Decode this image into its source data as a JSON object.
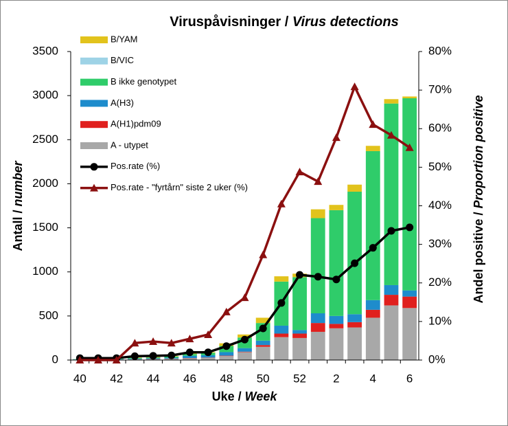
{
  "chart_data": {
    "type": "bar-line",
    "title": [
      "Viruspåvisninger /",
      "Virus detections"
    ],
    "x_label": [
      "Uke /",
      "Week"
    ],
    "y_label": [
      "Antall /",
      "number"
    ],
    "y2_label": [
      "Andel positive /",
      "Proportion positive"
    ],
    "categories": [
      40,
      null,
      42,
      null,
      44,
      null,
      46,
      null,
      48,
      null,
      50,
      null,
      52,
      null,
      2,
      null,
      4,
      null,
      6
    ],
    "ylim": [
      0,
      3500
    ],
    "yticks": [
      0,
      500,
      1000,
      1500,
      2000,
      2500,
      3000,
      3500
    ],
    "y2lim": [
      0,
      80
    ],
    "y2ticks": [
      {
        "value": 0,
        "label": "0%"
      },
      {
        "value": 10,
        "label": "10%"
      },
      {
        "value": 20,
        "label": "20%"
      },
      {
        "value": 30,
        "label": "30%"
      },
      {
        "value": 40,
        "label": "40%"
      },
      {
        "value": 50,
        "label": "50%"
      },
      {
        "value": 60,
        "label": "60%"
      },
      {
        "value": 70,
        "label": "70%"
      },
      {
        "value": 80,
        "label": "80%"
      }
    ],
    "series": [
      {
        "name": "B/YAM",
        "type": "bar",
        "color": "#e2c31c",
        "values": [
          0,
          0,
          0,
          5,
          5,
          5,
          7,
          7,
          30,
          35,
          60,
          60,
          40,
          100,
          60,
          80,
          60,
          50,
          20
        ]
      },
      {
        "name": "B/VIC",
        "type": "bar",
        "color": "#9ed3e6",
        "values": [
          0,
          0,
          0,
          0,
          0,
          0,
          0,
          0,
          0,
          0,
          0,
          0,
          0,
          0,
          0,
          0,
          0,
          0,
          0
        ]
      },
      {
        "name": "B ikke genotypet",
        "type": "bar",
        "color": "#2fcc6a",
        "values": [
          3,
          5,
          5,
          10,
          10,
          13,
          20,
          28,
          70,
          120,
          200,
          500,
          600,
          1080,
          1200,
          1390,
          1690,
          2060,
          2180
        ]
      },
      {
        "name": "A(H3)",
        "type": "bar",
        "color": "#1e8ccc",
        "values": [
          2,
          2,
          3,
          5,
          8,
          10,
          25,
          27,
          40,
          40,
          50,
          90,
          40,
          110,
          90,
          90,
          110,
          110,
          70
        ]
      },
      {
        "name": "A(H1)pdm09",
        "type": "bar",
        "color": "#e0201e",
        "values": [
          0,
          0,
          0,
          0,
          2,
          2,
          3,
          3,
          5,
          5,
          20,
          40,
          50,
          100,
          50,
          60,
          90,
          120,
          130
        ]
      },
      {
        "name": "A - utypet",
        "type": "bar",
        "color": "#a8a8a8",
        "values": [
          5,
          5,
          5,
          10,
          10,
          15,
          20,
          25,
          45,
          90,
          150,
          260,
          250,
          320,
          360,
          370,
          480,
          620,
          590
        ]
      },
      {
        "name": "Pos.rate (%)",
        "type": "line",
        "axis": "y2",
        "marker": "circle",
        "color": "#000000",
        "values": [
          0.5,
          0.5,
          0.5,
          1,
          1.1,
          1.2,
          2,
          2,
          3.6,
          5.3,
          8.2,
          14.8,
          22.1,
          21.6,
          20.9,
          25.1,
          29.1,
          33.5,
          34.4
        ]
      },
      {
        "name": "Pos.rate - \"fyrtårn\" siste 2 uker (%)",
        "type": "line",
        "axis": "y2",
        "marker": "triangle",
        "color": "#8b1010",
        "values": [
          0,
          0,
          0,
          4.4,
          4.8,
          4.4,
          5.5,
          6.6,
          12.5,
          16.2,
          27.3,
          40.5,
          48.8,
          46.3,
          57.7,
          70.9,
          61.1,
          58.3,
          55.1
        ]
      }
    ]
  }
}
